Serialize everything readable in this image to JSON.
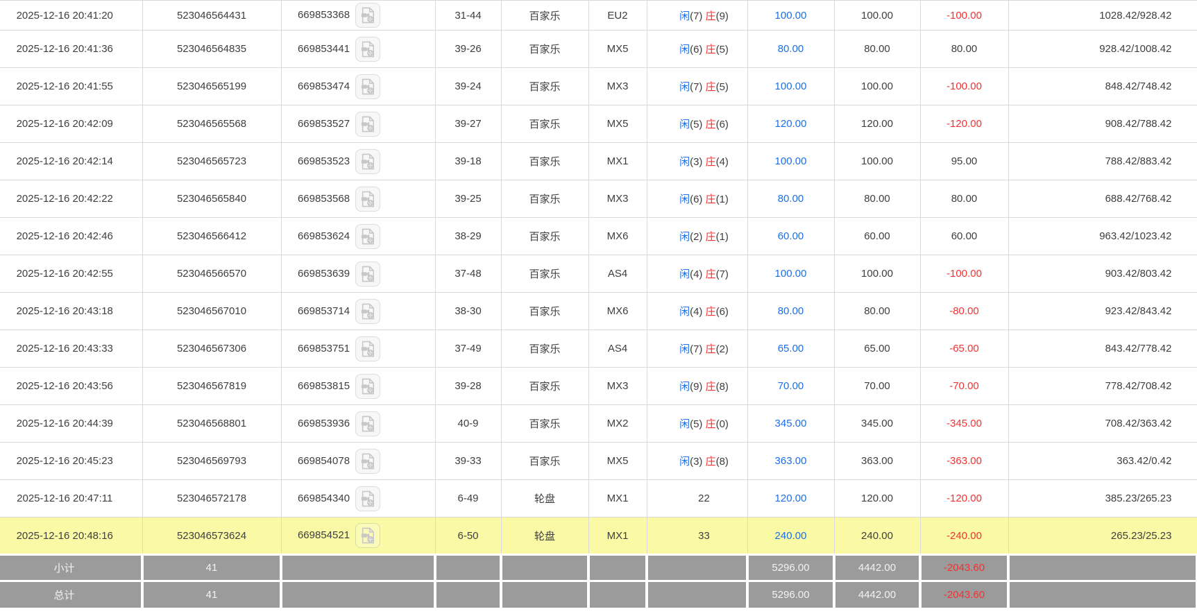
{
  "colors": {
    "accent_blue": "#1c6fe8",
    "accent_red": "#f53030",
    "highlight_yellow": "#fafaa6",
    "summary_gray": "#9b9b9b",
    "border_gray": "#d9d9d9"
  },
  "icons": {
    "video_playback": "video-playback-icon"
  },
  "result_labels": {
    "player": "闲",
    "banker": "庄"
  },
  "table": {
    "rows": [
      {
        "time": "2025-12-16 20:41:20",
        "bet_no": "523046564431",
        "round_no": "669853368",
        "shoe_round": "31-44",
        "game": "百家乐",
        "table_code": "EU2",
        "result": {
          "player": "7",
          "banker": "9"
        },
        "bet": "100.00",
        "valid": "100.00",
        "winloss": "-100.00",
        "balance": "1028.42/928.42",
        "highlight": false
      },
      {
        "time": "2025-12-16 20:41:36",
        "bet_no": "523046564835",
        "round_no": "669853441",
        "shoe_round": "39-26",
        "game": "百家乐",
        "table_code": "MX5",
        "result": {
          "player": "6",
          "banker": "5"
        },
        "bet": "80.00",
        "valid": "80.00",
        "winloss": "80.00",
        "balance": "928.42/1008.42",
        "highlight": false
      },
      {
        "time": "2025-12-16 20:41:55",
        "bet_no": "523046565199",
        "round_no": "669853474",
        "shoe_round": "39-24",
        "game": "百家乐",
        "table_code": "MX3",
        "result": {
          "player": "7",
          "banker": "5"
        },
        "bet": "100.00",
        "valid": "100.00",
        "winloss": "-100.00",
        "balance": "848.42/748.42",
        "highlight": false
      },
      {
        "time": "2025-12-16 20:42:09",
        "bet_no": "523046565568",
        "round_no": "669853527",
        "shoe_round": "39-27",
        "game": "百家乐",
        "table_code": "MX5",
        "result": {
          "player": "5",
          "banker": "6"
        },
        "bet": "120.00",
        "valid": "120.00",
        "winloss": "-120.00",
        "balance": "908.42/788.42",
        "highlight": false
      },
      {
        "time": "2025-12-16 20:42:14",
        "bet_no": "523046565723",
        "round_no": "669853523",
        "shoe_round": "39-18",
        "game": "百家乐",
        "table_code": "MX1",
        "result": {
          "player": "3",
          "banker": "4"
        },
        "bet": "100.00",
        "valid": "100.00",
        "winloss": "95.00",
        "balance": "788.42/883.42",
        "highlight": false
      },
      {
        "time": "2025-12-16 20:42:22",
        "bet_no": "523046565840",
        "round_no": "669853568",
        "shoe_round": "39-25",
        "game": "百家乐",
        "table_code": "MX3",
        "result": {
          "player": "6",
          "banker": "1"
        },
        "bet": "80.00",
        "valid": "80.00",
        "winloss": "80.00",
        "balance": "688.42/768.42",
        "highlight": false
      },
      {
        "time": "2025-12-16 20:42:46",
        "bet_no": "523046566412",
        "round_no": "669853624",
        "shoe_round": "38-29",
        "game": "百家乐",
        "table_code": "MX6",
        "result": {
          "player": "2",
          "banker": "1"
        },
        "bet": "60.00",
        "valid": "60.00",
        "winloss": "60.00",
        "balance": "963.42/1023.42",
        "highlight": false
      },
      {
        "time": "2025-12-16 20:42:55",
        "bet_no": "523046566570",
        "round_no": "669853639",
        "shoe_round": "37-48",
        "game": "百家乐",
        "table_code": "AS4",
        "result": {
          "player": "4",
          "banker": "7"
        },
        "bet": "100.00",
        "valid": "100.00",
        "winloss": "-100.00",
        "balance": "903.42/803.42",
        "highlight": false
      },
      {
        "time": "2025-12-16 20:43:18",
        "bet_no": "523046567010",
        "round_no": "669853714",
        "shoe_round": "38-30",
        "game": "百家乐",
        "table_code": "MX6",
        "result": {
          "player": "4",
          "banker": "6"
        },
        "bet": "80.00",
        "valid": "80.00",
        "winloss": "-80.00",
        "balance": "923.42/843.42",
        "highlight": false
      },
      {
        "time": "2025-12-16 20:43:33",
        "bet_no": "523046567306",
        "round_no": "669853751",
        "shoe_round": "37-49",
        "game": "百家乐",
        "table_code": "AS4",
        "result": {
          "player": "7",
          "banker": "2"
        },
        "bet": "65.00",
        "valid": "65.00",
        "winloss": "-65.00",
        "balance": "843.42/778.42",
        "highlight": false
      },
      {
        "time": "2025-12-16 20:43:56",
        "bet_no": "523046567819",
        "round_no": "669853815",
        "shoe_round": "39-28",
        "game": "百家乐",
        "table_code": "MX3",
        "result": {
          "player": "9",
          "banker": "8"
        },
        "bet": "70.00",
        "valid": "70.00",
        "winloss": "-70.00",
        "balance": "778.42/708.42",
        "highlight": false
      },
      {
        "time": "2025-12-16 20:44:39",
        "bet_no": "523046568801",
        "round_no": "669853936",
        "shoe_round": "40-9",
        "game": "百家乐",
        "table_code": "MX2",
        "result": {
          "player": "5",
          "banker": "0"
        },
        "bet": "345.00",
        "valid": "345.00",
        "winloss": "-345.00",
        "balance": "708.42/363.42",
        "highlight": false
      },
      {
        "time": "2025-12-16 20:45:23",
        "bet_no": "523046569793",
        "round_no": "669854078",
        "shoe_round": "39-33",
        "game": "百家乐",
        "table_code": "MX5",
        "result": {
          "player": "3",
          "banker": "8"
        },
        "bet": "363.00",
        "valid": "363.00",
        "winloss": "-363.00",
        "balance": "363.42/0.42",
        "highlight": false
      },
      {
        "time": "2025-12-16 20:47:11",
        "bet_no": "523046572178",
        "round_no": "669854340",
        "shoe_round": "6-49",
        "game": "轮盘",
        "table_code": "MX1",
        "result": {
          "number": "22"
        },
        "bet": "120.00",
        "valid": "120.00",
        "winloss": "-120.00",
        "balance": "385.23/265.23",
        "highlight": false
      },
      {
        "time": "2025-12-16 20:48:16",
        "bet_no": "523046573624",
        "round_no": "669854521",
        "shoe_round": "6-50",
        "game": "轮盘",
        "table_code": "MX1",
        "result": {
          "number": "33"
        },
        "bet": "240.00",
        "valid": "240.00",
        "winloss": "-240.00",
        "balance": "265.23/25.23",
        "highlight": true
      }
    ]
  },
  "summary": {
    "rows": [
      {
        "label": "小计",
        "count": "41",
        "bet_total": "5296.00",
        "valid_total": "4442.00",
        "winloss_total": "-2043.60"
      },
      {
        "label": "总计",
        "count": "41",
        "bet_total": "5296.00",
        "valid_total": "4442.00",
        "winloss_total": "-2043.60"
      }
    ]
  }
}
